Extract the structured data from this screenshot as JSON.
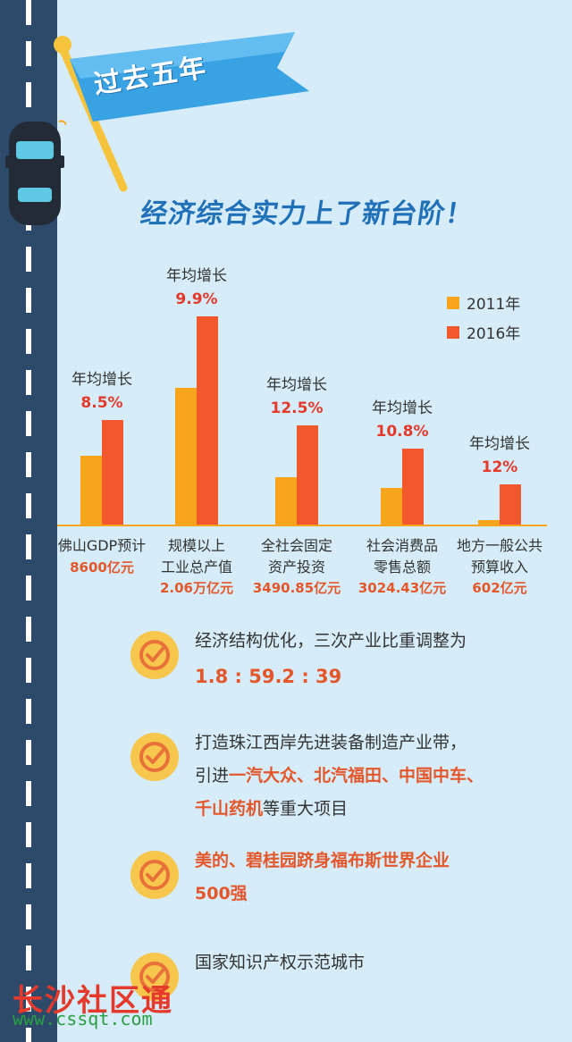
{
  "banner": {
    "title": "过去五年"
  },
  "headline": "经济综合实力上了新台阶！",
  "chart_data": {
    "type": "bar",
    "legend": [
      "2011年",
      "2016年"
    ],
    "growth_label": "年均增长",
    "categories": [
      {
        "line1": "佛山GDP预计",
        "line2": "",
        "value_label": "8600亿元",
        "growth": "8.5%"
      },
      {
        "line1": "规模以上",
        "line2": "工业总产值",
        "value_label": "2.06万亿元",
        "growth": "9.9%"
      },
      {
        "line1": "全社会固定",
        "line2": "资产投资",
        "value_label": "3490.85亿元",
        "growth": "12.5%"
      },
      {
        "line1": "社会消费品",
        "line2": "零售总额",
        "value_label": "3024.43亿元",
        "growth": "10.8%"
      },
      {
        "line1": "地方一般公共",
        "line2": "预算收入",
        "value_label": "602亿元",
        "growth": "12%"
      }
    ],
    "series": [
      {
        "name": "2011年",
        "color": "#f8a51d",
        "values": [
          0.39,
          0.77,
          0.27,
          0.21,
          0.03
        ]
      },
      {
        "name": "2016年",
        "color": "#f2582e",
        "values": [
          0.59,
          1.17,
          0.56,
          0.43,
          0.23
        ]
      }
    ],
    "colors": {
      "growth": "#e4392b",
      "value": "#e4572b",
      "axis": "#f8a51d"
    }
  },
  "items": [
    {
      "lines": [
        [
          {
            "t": "经济结构优化，三次产业比重调整为",
            "s": "n"
          }
        ],
        [
          {
            "t": "1.8 : 59.2 : 39",
            "s": "big"
          }
        ]
      ]
    },
    {
      "lines": [
        [
          {
            "t": "打造珠江西岸先进装备制造产业带，",
            "s": "n"
          }
        ],
        [
          {
            "t": "引进",
            "s": "n"
          },
          {
            "t": "一汽大众、北汽福田、中国中车、",
            "s": "r"
          }
        ],
        [
          {
            "t": "千山药机",
            "s": "r"
          },
          {
            "t": "等重大项目",
            "s": "n"
          }
        ]
      ]
    },
    {
      "lines": [
        [
          {
            "t": "美的、碧桂园跻身福布斯世界企业",
            "s": "r"
          }
        ],
        [
          {
            "t": "500强",
            "s": "r"
          }
        ]
      ]
    },
    {
      "lines": [
        [
          {
            "t": "国家知识产权示范城市",
            "s": "n"
          }
        ]
      ]
    }
  ],
  "watermark": {
    "cn": "长沙社区通",
    "url": "www.cssqt.com"
  }
}
